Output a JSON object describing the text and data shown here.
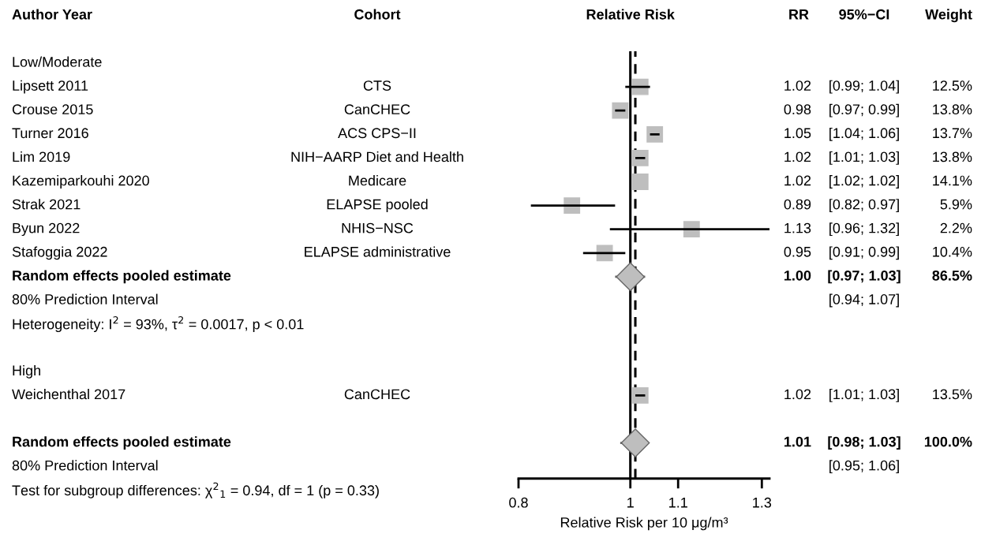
{
  "chart_data": [
    {
      "type": "other",
      "title": "Author Year",
      "categories": [
        "Low/Moderate",
        "Lipsett 2011",
        "Crouse 2015",
        "Turner 2016",
        "Lim 2019",
        "Kazemiparkouhi 2020",
        "Strak 2021",
        "Byun 2022",
        "Stafoggia 2022",
        "Random effects pooled estimate",
        "80% Prediction Interval",
        "Heterogeneity: I$^{2}$ = 93%, τ$^{2}$ = 0.0017, p < 0.01",
        null,
        "High",
        "Weichenthal 2017",
        null,
        "Random effects pooled estimate",
        "80% Prediction Interval",
        "Test for subgroup differences: χ$^{2}$$_{1}$ = 0.94, df = 1 (p = 0.33)"
      ]
    },
    {
      "type": "other",
      "title": "Cohort",
      "categories": [
        null,
        "CTS",
        "CanCHEC",
        "ACS CPS−II",
        "NIH−AARP Diet and Health",
        "Medicare",
        "ELAPSE pooled",
        "NHIS−NSC",
        "ELAPSE administrative",
        null,
        null,
        null,
        null,
        null,
        "CanCHEC",
        null,
        null,
        null,
        null
      ]
    },
    {
      "type": "scatter",
      "title": "Relative Risk",
      "xlabel": "Relative Risk per 10 μg/m³",
      "orientation": "horizontal",
      "log": "x",
      "xlim": [
        0.8,
        1.32
      ],
      "xticks": [
        0.8,
        1,
        1.1,
        1.3
      ],
      "tick_labels": "x",
      "grid": false,
      "legend": false,
      "categories": [
        null,
        null,
        null,
        null,
        null,
        null,
        null,
        null,
        null,
        null,
        null,
        null,
        null,
        null,
        null,
        null,
        null,
        null
      ],
      "series": [
        {
          "marker": "square",
          "color": "#bebebe",
          "values": [
            null,
            1.02,
            0.98,
            1.05,
            1.02,
            1.02,
            0.89,
            1.13,
            0.95,
            null,
            null,
            null,
            null,
            null,
            1.02,
            null,
            null,
            null
          ],
          "errors": [
            null,
            [
              0.99,
              1.04
            ],
            [
              0.97,
              0.99
            ],
            [
              1.04,
              1.06
            ],
            [
              1.01,
              1.03
            ],
            [
              1.02,
              1.02
            ],
            [
              0.82,
              0.97
            ],
            [
              0.96,
              1.32
            ],
            [
              0.91,
              0.99
            ],
            null,
            null,
            null,
            null,
            null,
            [
              1.01,
              1.03
            ],
            null,
            null,
            null
          ]
        },
        {
          "marker": "diamond",
          "color": "#bebebe",
          "values": [
            null,
            null,
            null,
            null,
            null,
            null,
            null,
            null,
            null,
            1.0,
            null,
            null,
            null,
            null,
            null,
            null,
            1.01,
            null
          ],
          "errors": [
            null,
            null,
            null,
            null,
            null,
            null,
            null,
            null,
            null,
            [
              0.97,
              1.03
            ],
            null,
            null,
            null,
            null,
            null,
            null,
            [
              0.98,
              1.03
            ],
            null
          ]
        }
      ],
      "ref_lines": [
        {
          "axis": "x",
          "value": 1,
          "color": "#000000",
          "line_style": "solid"
        },
        {
          "axis": "x",
          "value": 1.01,
          "color": "#000000",
          "line_style": "dashed"
        }
      ]
    },
    {
      "type": "other",
      "title": "RR",
      "categories": [
        null,
        "1.02",
        "0.98",
        "1.05",
        "1.02",
        "1.02",
        "0.89",
        "1.13",
        "0.95",
        "1.00",
        null,
        null,
        null,
        null,
        "1.02",
        null,
        "1.01",
        null,
        null
      ]
    },
    {
      "type": "other",
      "title": "95%−CI",
      "categories": [
        null,
        "[0.99; 1.04]",
        "[0.97; 0.99]",
        "[1.04; 1.06]",
        "[1.01; 1.03]",
        "[1.02; 1.02]",
        "[0.82; 0.97]",
        "[0.96; 1.32]",
        "[0.91; 0.99]",
        "[0.97; 1.03]",
        "[0.94; 1.07]",
        null,
        null,
        null,
        "[1.01; 1.03]",
        null,
        "[0.98; 1.03]",
        "[0.95; 1.06]",
        null
      ]
    },
    {
      "type": "other",
      "title": "Weight",
      "categories": [
        null,
        "12.5%",
        "13.8%",
        "13.7%",
        "13.8%",
        "14.1%",
        "5.9%",
        "2.2%",
        "10.4%",
        "86.5%",
        null,
        null,
        null,
        null,
        "13.5%",
        null,
        "100.0%",
        null,
        null
      ]
    }
  ]
}
